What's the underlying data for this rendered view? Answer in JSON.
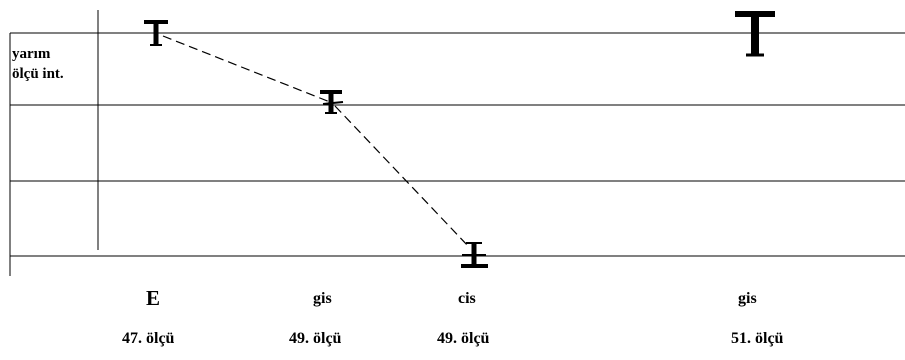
{
  "row_label": {
    "line1": "yarım",
    "line2": "ölçü int."
  },
  "notes": [
    {
      "id": "n1",
      "pitch": "E",
      "measure": "47. ölçü",
      "staff_line": 0
    },
    {
      "id": "n2",
      "pitch": "gis",
      "measure": "49. ölçü",
      "staff_line": 1
    },
    {
      "id": "n3",
      "pitch": "cis",
      "measure": "49. ölçü",
      "staff_line": 3
    },
    {
      "id": "n4",
      "pitch": "gis",
      "measure": "51. ölçü",
      "staff_line": 0
    }
  ],
  "connections": [
    [
      "n1",
      "n2"
    ],
    [
      "n2",
      "n3"
    ]
  ],
  "colors": {
    "line": "#000000",
    "background": "#ffffff"
  }
}
